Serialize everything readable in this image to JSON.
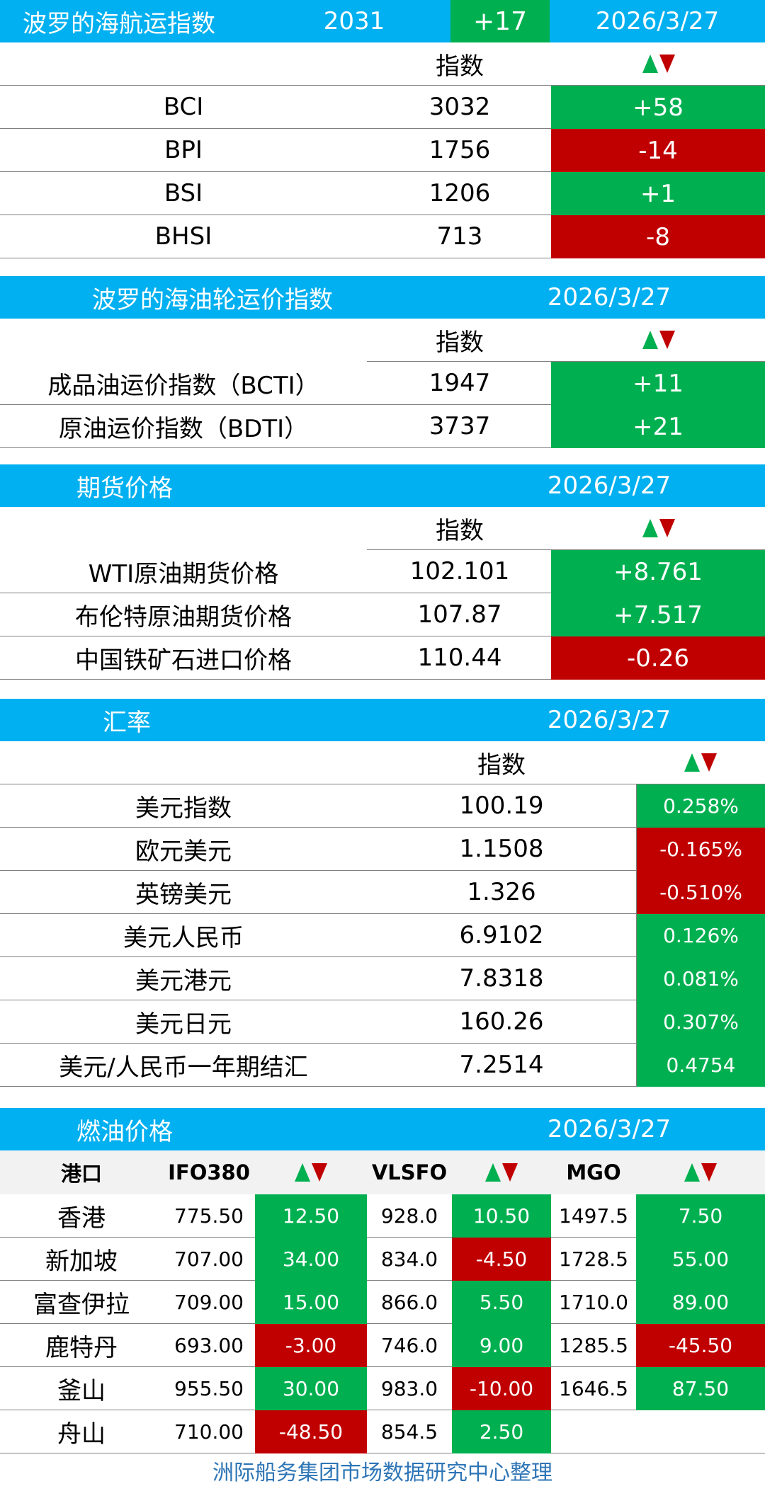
{
  "baltic_dry": {
    "title": "波罗的海航运指数",
    "value": "2031",
    "change": "+17",
    "date": "2026/3/27",
    "col_index": "指数",
    "rows": [
      {
        "name": "BCI",
        "value": "3032",
        "change": "+58",
        "dir": "up"
      },
      {
        "name": "BPI",
        "value": "1756",
        "change": "-14",
        "dir": "down"
      },
      {
        "name": "BSI",
        "value": "1206",
        "change": "+1",
        "dir": "up"
      },
      {
        "name": "BHSI",
        "value": "713",
        "change": "-8",
        "dir": "down"
      }
    ]
  },
  "baltic_tanker": {
    "title": "波罗的海油轮运价指数",
    "date": "2026/3/27",
    "col_index": "指数",
    "rows": [
      {
        "name": "成品油运价指数（BCTI）",
        "value": "1947",
        "change": "+11",
        "dir": "up"
      },
      {
        "name": "原油运价指数（BDTI）",
        "value": "3737",
        "change": "+21",
        "dir": "up"
      }
    ]
  },
  "futures": {
    "title": "期货价格",
    "date": "2026/3/27",
    "col_index": "指数",
    "rows": [
      {
        "name": "WTI原油期货价格",
        "value": "102.101",
        "change": "+8.761",
        "dir": "up"
      },
      {
        "name": "布伦特原油期货价格",
        "value": "107.87",
        "change": "+7.517",
        "dir": "up"
      },
      {
        "name": "中国铁矿石进口价格",
        "value": "110.44",
        "change": "-0.26",
        "dir": "down"
      }
    ]
  },
  "fx": {
    "title": "汇率",
    "date": "2026/3/27",
    "col_index": "指数",
    "rows": [
      {
        "name": "美元指数",
        "value": "100.19",
        "change": "0.258%",
        "dir": "up"
      },
      {
        "name": "欧元美元",
        "value": "1.1508",
        "change": "-0.165%",
        "dir": "down"
      },
      {
        "name": "英镑美元",
        "value": "1.326",
        "change": "-0.510%",
        "dir": "down"
      },
      {
        "name": "美元人民币",
        "value": "6.9102",
        "change": "0.126%",
        "dir": "up"
      },
      {
        "name": "美元港元",
        "value": "7.8318",
        "change": "0.081%",
        "dir": "up"
      },
      {
        "name": "美元日元",
        "value": "160.26",
        "change": "0.307%",
        "dir": "up"
      },
      {
        "name": "美元/人民币一年期结汇",
        "value": "7.2514",
        "change": "0.4754",
        "dir": "up"
      }
    ]
  },
  "bunker": {
    "title": "燃油价格",
    "date": "2026/3/27",
    "headers": {
      "port": "港口",
      "ifo": "IFO380",
      "vlsfo": "VLSFO",
      "mgo": "MGO"
    },
    "rows": [
      {
        "port": "香港",
        "ifo": "775.50",
        "ifo_chg": "12.50",
        "ifo_dir": "up",
        "vlsfo": "928.0",
        "vlsfo_chg": "10.50",
        "vlsfo_dir": "up",
        "mgo": "1497.5",
        "mgo_chg": "7.50",
        "mgo_dir": "up"
      },
      {
        "port": "新加坡",
        "ifo": "707.00",
        "ifo_chg": "34.00",
        "ifo_dir": "up",
        "vlsfo": "834.0",
        "vlsfo_chg": "-4.50",
        "vlsfo_dir": "down",
        "mgo": "1728.5",
        "mgo_chg": "55.00",
        "mgo_dir": "up"
      },
      {
        "port": "富查伊拉",
        "ifo": "709.00",
        "ifo_chg": "15.00",
        "ifo_dir": "up",
        "vlsfo": "866.0",
        "vlsfo_chg": "5.50",
        "vlsfo_dir": "up",
        "mgo": "1710.0",
        "mgo_chg": "89.00",
        "mgo_dir": "up"
      },
      {
        "port": "鹿特丹",
        "ifo": "693.00",
        "ifo_chg": "-3.00",
        "ifo_dir": "down",
        "vlsfo": "746.0",
        "vlsfo_chg": "9.00",
        "vlsfo_dir": "up",
        "mgo": "1285.5",
        "mgo_chg": "-45.50",
        "mgo_dir": "down"
      },
      {
        "port": "釜山",
        "ifo": "955.50",
        "ifo_chg": "30.00",
        "ifo_dir": "up",
        "vlsfo": "983.0",
        "vlsfo_chg": "-10.00",
        "vlsfo_dir": "down",
        "mgo": "1646.5",
        "mgo_chg": "87.50",
        "mgo_dir": "up"
      },
      {
        "port": "舟山",
        "ifo": "710.00",
        "ifo_chg": "-48.50",
        "ifo_dir": "down",
        "vlsfo": "854.5",
        "vlsfo_chg": "2.50",
        "vlsfo_dir": "up",
        "mgo": "",
        "mgo_chg": "",
        "mgo_dir": "none"
      }
    ]
  },
  "footer": "洲际船务集团市场数据研究中心整理"
}
